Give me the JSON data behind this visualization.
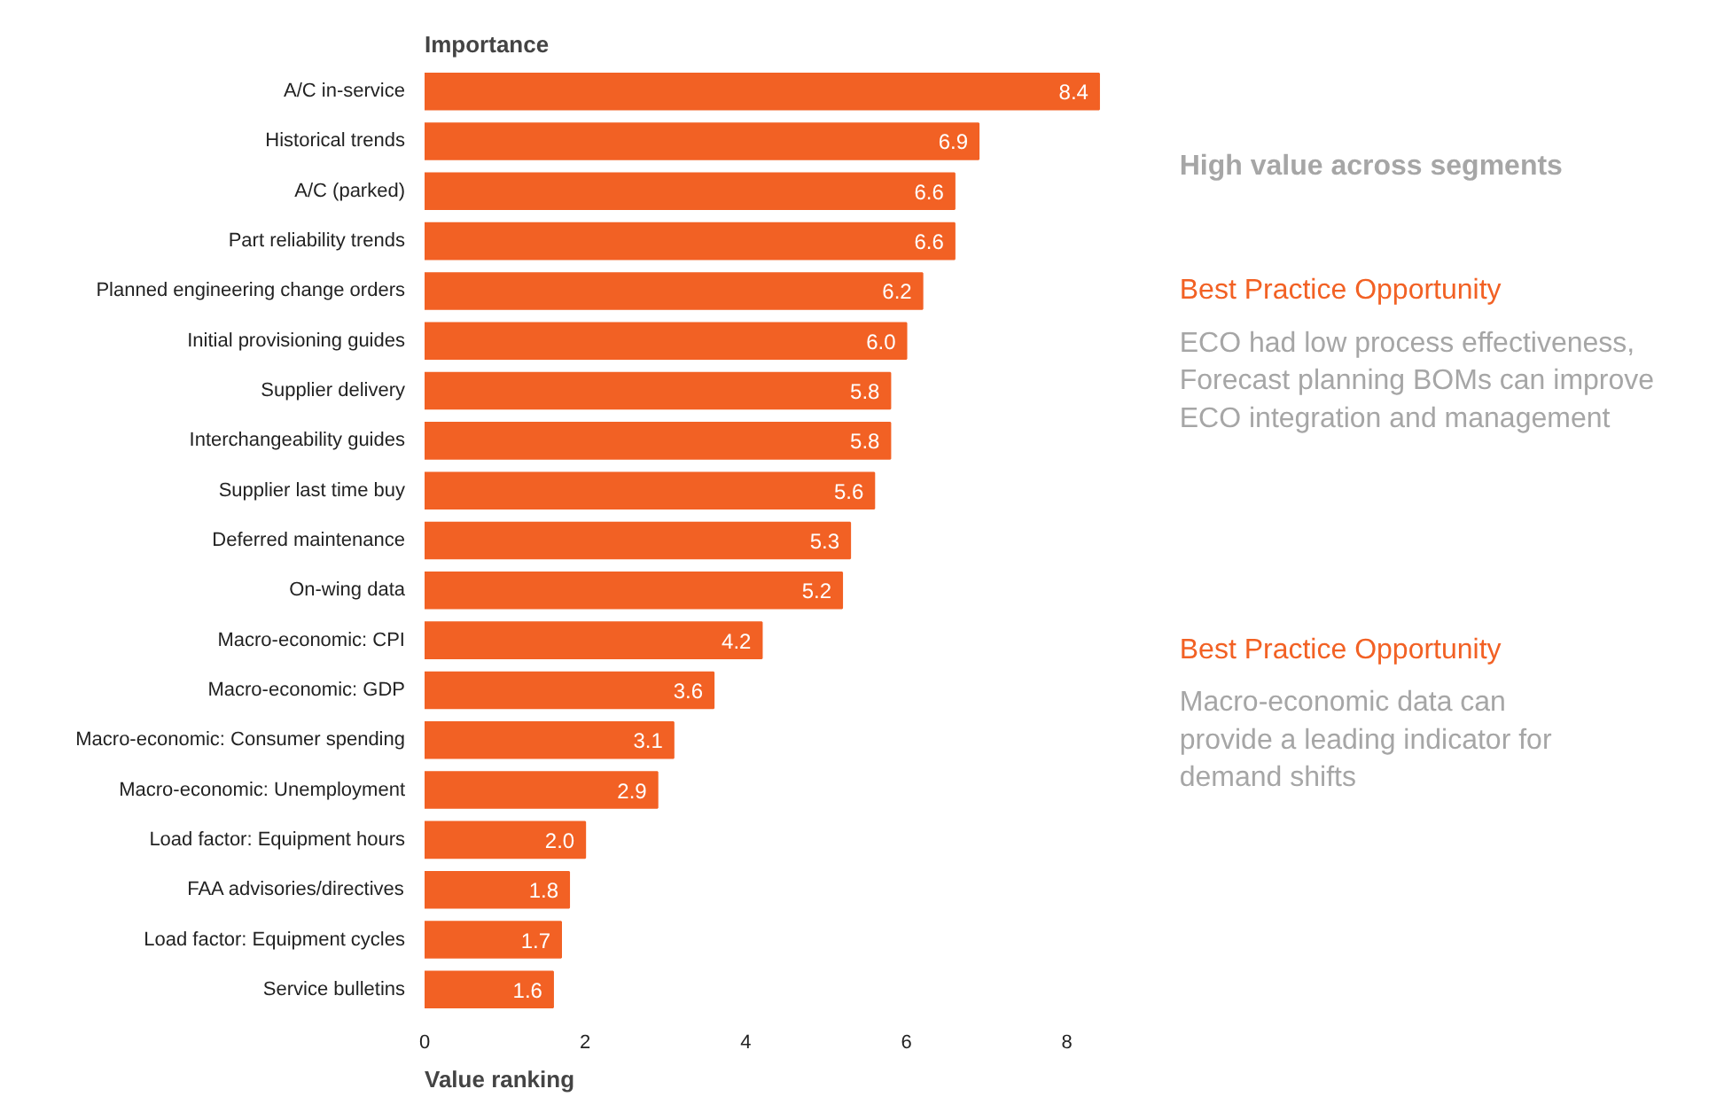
{
  "chart_data": {
    "type": "bar",
    "orientation": "horizontal",
    "ylabel": "Importance",
    "xlabel": "Value ranking",
    "categories": [
      "A/C in-service",
      "Historical trends",
      "A/C (parked)",
      "Part reliability trends",
      "Planned engineering change orders",
      "Initial provisioning guides",
      "Supplier delivery",
      "Interchangeability guides",
      "Supplier last time buy",
      "Deferred maintenance",
      "On-wing data",
      "Macro-economic: CPI",
      "Macro-economic: GDP",
      "Macro-economic: Consumer spending",
      "Macro-economic: Unemployment",
      "Load factor: Equipment hours",
      "FAA advisories/directives",
      "Load factor: Equipment cycles",
      "Service bulletins"
    ],
    "values": [
      8.4,
      6.9,
      6.6,
      6.6,
      6.2,
      6.0,
      5.8,
      5.8,
      5.6,
      5.3,
      5.2,
      4.2,
      3.6,
      3.1,
      2.9,
      2.0,
      1.8,
      1.7,
      1.6
    ],
    "value_labels": [
      "8.4",
      "6.9",
      "6.6",
      "6.6",
      "6.2",
      "6.0",
      "5.8",
      "5.8",
      "5.6",
      "5.3",
      "5.2",
      "4.2",
      "3.6",
      "3.1",
      "2.9",
      "2.0",
      "1.8",
      "1.7",
      "1.6"
    ],
    "color": "#f26124",
    "xlim": [
      0,
      8.5
    ],
    "xticks": [
      0,
      2,
      4,
      6,
      8
    ],
    "grid": false,
    "annotations": [
      "High value across segments",
      "Best Practice Opportunity",
      "ECO had low process effectiveness,\nForecast planning BOMs can improve\nECO integration and management",
      "Best Practice Opportunity",
      "Macro-economic data can\nprovide a leading indicator for\ndemand shifts"
    ]
  }
}
